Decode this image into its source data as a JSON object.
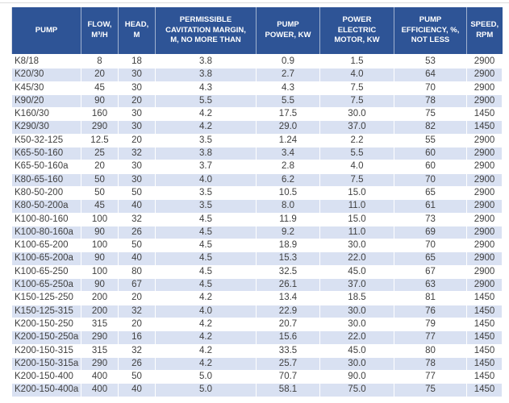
{
  "colors": {
    "header_bg": "#2e5496",
    "header_text": "#ffffff",
    "band_bg": "#d9e1f2",
    "body_text": "#404040"
  },
  "table": {
    "headers": [
      "PUMP",
      "FLOW,\nM³/H",
      "HEAD,\nM",
      "PERMISSIBLE\nCAVITATION MARGIN,\nM, NO MORE THAN",
      "PUMP\nPOWER, KW",
      "POWER\nELECTRIC\nMOTOR, KW",
      "PUMP\nEFFICIENCY, %,\nNOT LESS",
      "SPEED,\nRPM"
    ],
    "rows": [
      [
        "K8/18",
        "8",
        "18",
        "3.8",
        "0.9",
        "1.5",
        "53",
        "2900"
      ],
      [
        "K20/30",
        "20",
        "30",
        "3.8",
        "2.7",
        "4.0",
        "64",
        "2900"
      ],
      [
        "K45/30",
        "45",
        "30",
        "4.3",
        "4.3",
        "7.5",
        "70",
        "2900"
      ],
      [
        "K90/20",
        "90",
        "20",
        "5.5",
        "5.5",
        "7.5",
        "78",
        "2900"
      ],
      [
        "K160/30",
        "160",
        "30",
        "4.2",
        "17.5",
        "30.0",
        "75",
        "1450"
      ],
      [
        "K290/30",
        "290",
        "30",
        "4.2",
        "29.0",
        "37.0",
        "82",
        "1450"
      ],
      [
        "K50-32-125",
        "12.5",
        "20",
        "3.5",
        "1.24",
        "2.2",
        "55",
        "2900"
      ],
      [
        "K65-50-160",
        "25",
        "32",
        "3.8",
        "3.4",
        "5.5",
        "60",
        "2900"
      ],
      [
        "K65-50-160a",
        "20",
        "30",
        "3.7",
        "2.8",
        "4.0",
        "60",
        "2900"
      ],
      [
        "K80-65-160",
        "50",
        "30",
        "4.0",
        "6.2",
        "7.5",
        "70",
        "2900"
      ],
      [
        "K80-50-200",
        "50",
        "50",
        "3.5",
        "10.5",
        "15.0",
        "65",
        "2900"
      ],
      [
        "K80-50-200a",
        "45",
        "40",
        "3.5",
        "8.0",
        "11.0",
        "61",
        "2900"
      ],
      [
        "K100-80-160",
        "100",
        "32",
        "4.5",
        "11.9",
        "15.0",
        "73",
        "2900"
      ],
      [
        "K100-80-160a",
        "90",
        "26",
        "4.5",
        "9.2",
        "11.0",
        "69",
        "2900"
      ],
      [
        "K100-65-200",
        "100",
        "50",
        "4.5",
        "18.9",
        "30.0",
        "70",
        "2900"
      ],
      [
        "K100-65-200a",
        "90",
        "40",
        "4.5",
        "15.3",
        "22.0",
        "65",
        "2900"
      ],
      [
        "K100-65-250",
        "100",
        "80",
        "4.5",
        "32.5",
        "45.0",
        "67",
        "2900"
      ],
      [
        "K100-65-250a",
        "90",
        "67",
        "4.5",
        "26.1",
        "37.0",
        "63",
        "2900"
      ],
      [
        "K150-125-250",
        "200",
        "20",
        "4.2",
        "13.4",
        "18.5",
        "81",
        "1450"
      ],
      [
        "K150-125-315",
        "200",
        "32",
        "4.0",
        "22.9",
        "30.0",
        "76",
        "1450"
      ],
      [
        "K200-150-250",
        "315",
        "20",
        "4.2",
        "20.7",
        "30.0",
        "79",
        "1450"
      ],
      [
        "K200-150-250a",
        "290",
        "16",
        "4.2",
        "15.6",
        "22.0",
        "77",
        "1450"
      ],
      [
        "K200-150-315",
        "315",
        "32",
        "4.2",
        "33.5",
        "45.0",
        "80",
        "1450"
      ],
      [
        "K200-150-315a",
        "290",
        "26",
        "4.2",
        "25.7",
        "30.0",
        "78",
        "1450"
      ],
      [
        "K200-150-400",
        "400",
        "50",
        "5.0",
        "70.7",
        "90.0",
        "77",
        "1450"
      ],
      [
        "K200-150-400a",
        "400",
        "40",
        "5.0",
        "58.1",
        "75.0",
        "75",
        "1450"
      ]
    ]
  }
}
